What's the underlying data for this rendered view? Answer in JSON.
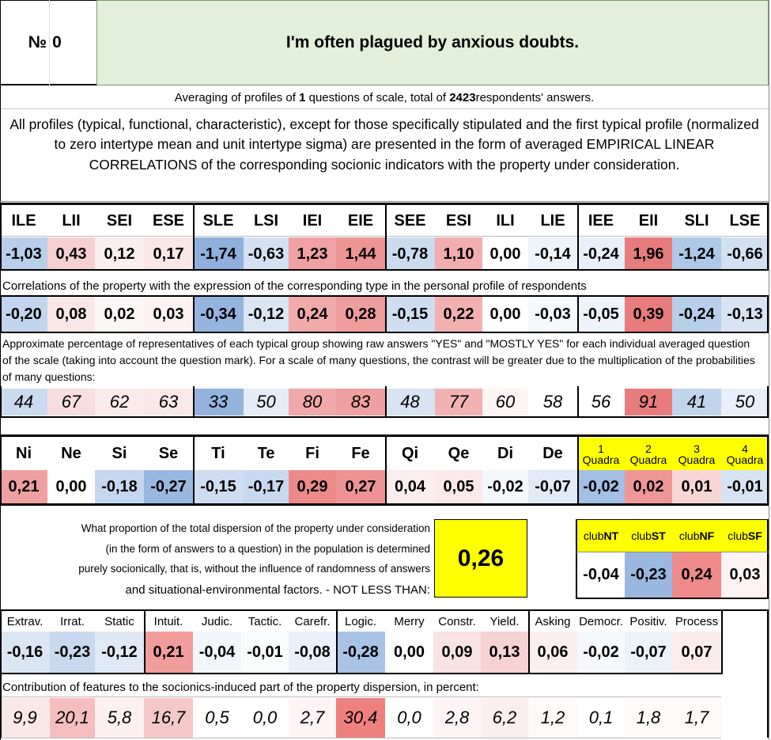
{
  "header": {
    "number_label": "№",
    "number_value": "0",
    "title": "I'm often plagued by anxious doubts."
  },
  "summary": {
    "prefix": "Averaging of profiles of ",
    "questions": "1",
    "middle": " questions of scale, total of ",
    "respondents": "2423",
    "suffix": " respondents' answers."
  },
  "description": "All profiles (typical, functional, characteristic), except for those specifically stipulated and the first typical profile (normalized to zero intertype mean and unit intertype sigma) are presented in the form of averaged EMPIRICAL LINEAR CORRELATIONS of the corresponding socionic indicators with the property under consideration.",
  "types": {
    "labels": [
      "ILE",
      "LII",
      "SEI",
      "ESE",
      "SLE",
      "LSI",
      "IEI",
      "EIE",
      "SEE",
      "ESI",
      "ILI",
      "LIE",
      "IEE",
      "EII",
      "SLI",
      "LSE"
    ],
    "values": [
      "-1,03",
      "0,43",
      "0,12",
      "0,17",
      "-1,74",
      "-0,63",
      "1,23",
      "1,44",
      "-0,78",
      "1,10",
      "0,00",
      "-0,14",
      "-0,24",
      "1,96",
      "-1,24",
      "-0,66"
    ],
    "colors": [
      "#b8cfea",
      "#f6d0d0",
      "#fbeeee",
      "#f9e6e6",
      "#8fb0dc",
      "#d3e1f2",
      "#f0a2a2",
      "#ed9494",
      "#cbdbef",
      "#f2aeae",
      "#ffffff",
      "#eef3fa",
      "#e8eff9",
      "#e87c7c",
      "#afc8e7",
      "#d2e0f2"
    ]
  },
  "correlations_caption": "Correlations of the property with the expression of the corresponding type in the personal profile of respondents",
  "correlations": {
    "values": [
      "-0,20",
      "0,08",
      "0,02",
      "0,03",
      "-0,34",
      "-0,12",
      "0,24",
      "0,28",
      "-0,15",
      "0,22",
      "0,00",
      "-0,03",
      "-0,05",
      "0,39",
      "-0,24",
      "-0,13"
    ],
    "colors": [
      "#c2d5ed",
      "#f9e6e6",
      "#fdf6f6",
      "#fcf2f2",
      "#95b4de",
      "#dbe6f4",
      "#f1aaaa",
      "#ee9c9c",
      "#cfddf0",
      "#f2b0b0",
      "#ffffff",
      "#f5f8fc",
      "#eef3fa",
      "#e87c7c",
      "#b8cfea",
      "#d8e4f3"
    ]
  },
  "percent_caption": "Approximate percentage of representatives of each typical group showing raw answers \"YES\" and \"MOSTLY YES\" for each individual averaged question of the scale (taking into account the question mark). For a scale of many questions, the contrast will be greater due to the multiplication of the probabilities of many questions:",
  "percentages": {
    "values": [
      "44",
      "67",
      "62",
      "63",
      "33",
      "50",
      "80",
      "83",
      "48",
      "77",
      "60",
      "58",
      "56",
      "91",
      "41",
      "50"
    ],
    "colors": [
      "#cbdbef",
      "#f8dede",
      "#fbeaea",
      "#fae8e8",
      "#93b3dd",
      "#e4ecf7",
      "#f1a8a8",
      "#ef9f9f",
      "#d8e4f3",
      "#f2b2b2",
      "#fdf4f4",
      "#ffffff",
      "#ffffff",
      "#e87c7c",
      "#c0d4ec",
      "#e8eff9"
    ]
  },
  "functions": {
    "labels": [
      "Ni",
      "Ne",
      "Si",
      "Se",
      "Ti",
      "Te",
      "Fi",
      "Fe",
      "Qi",
      "Qe",
      "Di",
      "De"
    ],
    "values": [
      "0,21",
      "0,00",
      "-0,18",
      "-0,27",
      "-0,15",
      "-0,17",
      "0,29",
      "0,27",
      "0,04",
      "0,05",
      "-0,02",
      "-0,07"
    ],
    "colors": [
      "#f0a0a0",
      "#ffffff",
      "#c5d7ee",
      "#9ab8df",
      "#cfddf0",
      "#c8d9ef",
      "#ec8a8a",
      "#ee9393",
      "#fbeeee",
      "#fae9e9",
      "#f4f7fc",
      "#e2eaf6"
    ]
  },
  "quadras": {
    "labels": [
      {
        "num": "1",
        "word": "Quadra"
      },
      {
        "num": "2",
        "word": "Quadra"
      },
      {
        "num": "3",
        "word": "Quadra"
      },
      {
        "num": "4",
        "word": "Quadra"
      }
    ],
    "values": [
      "-0,02",
      "0,02",
      "0,01",
      "-0,01"
    ],
    "colors": [
      "#a3bfe3",
      "#ef9696",
      "#f7d6d6",
      "#d6e3f3"
    ],
    "header_color": "#ffff00"
  },
  "dispersion": {
    "text_lines": [
      "What proportion of the total dispersion of the property under consideration",
      "(in the form of answers to a question) in the population is determined",
      "purely socionically, that is, without the influence of randomness of answers",
      "and situational-environmental factors. - NOT LESS THAN:"
    ],
    "value": "0,26",
    "value_bg": "#ffff00"
  },
  "clubs": {
    "labels": [
      {
        "pre": "club",
        "bold": "NT"
      },
      {
        "pre": "club",
        "bold": "ST"
      },
      {
        "pre": "club",
        "bold": "NF"
      },
      {
        "pre": "club",
        "bold": "SF"
      }
    ],
    "values": [
      "-0,04",
      "-0,23",
      "0,24",
      "0,03"
    ],
    "colors": [
      "#ffffff",
      "#9ab8df",
      "#ef8a8a",
      "#fdf3f3"
    ],
    "header_color": "#ffff00"
  },
  "traits": {
    "labels": [
      "Extrav.",
      "Irrat.",
      "Static",
      "Intuit.",
      "Judic.",
      "Tactic.",
      "Carefr.",
      "Logic.",
      "Merry",
      "Constr.",
      "Yield.",
      "Asking",
      "Democr.",
      "Positiv.",
      "Process"
    ],
    "values": [
      "-0,16",
      "-0,23",
      "-0,12",
      "0,21",
      "-0,04",
      "-0,01",
      "-0,08",
      "-0,28",
      "0,00",
      "0,09",
      "0,13",
      "0,06",
      "-0,02",
      "-0,07",
      "0,07"
    ],
    "colors": [
      "#dbe6f4",
      "#c8d9ef",
      "#e0e9f5",
      "#f29c9c",
      "#f2f6fb",
      "#fbfcfe",
      "#eaf0f9",
      "#a9c3e5",
      "#ffffff",
      "#f9e2e2",
      "#f6d2d2",
      "#fbeeee",
      "#f6f9fc",
      "#edf2f9",
      "#fbecec"
    ]
  },
  "contrib_caption": "Contribution of features to the sociоnics-induced part of the property dispersion, in percent:",
  "contributions": {
    "values": [
      "9,9",
      "20,1",
      "5,8",
      "16,7",
      "0,5",
      "0,0",
      "2,7",
      "30,4",
      "0,0",
      "2,8",
      "6,2",
      "1,2",
      "0,1",
      "1,8",
      "1,7"
    ],
    "colors": [
      "#fae8e8",
      "#f4bebe",
      "#fcf0f0",
      "#f5c8c8",
      "#fffdfd",
      "#ffffff",
      "#fdf5f5",
      "#ef8080",
      "#ffffff",
      "#fdf5f5",
      "#fbeeee",
      "#fefafa",
      "#ffffff",
      "#fefafa",
      "#fefafa"
    ]
  },
  "palette": {
    "title_bg": "#e2efda",
    "grid_line": "#000000"
  }
}
